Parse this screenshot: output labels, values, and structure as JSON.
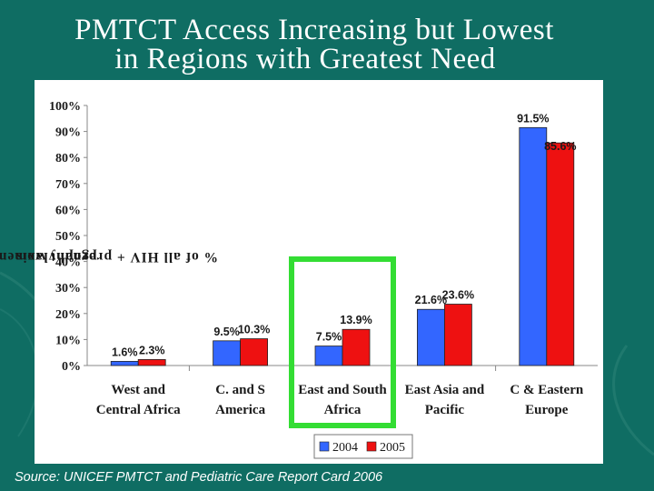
{
  "slide": {
    "title_line1": "PMTCT Access Increasing but Lowest",
    "title_line2": "in Regions with Greatest Need",
    "source": "Source: UNICEF PMTCT and Pediatric Care Report Card 2006"
  },
  "colors": {
    "background": "#0f6d63",
    "series_2004": "#3366ff",
    "series_2005": "#ee1111",
    "highlight": "#33dd33"
  },
  "chart_data": {
    "type": "bar",
    "title": "",
    "xlabel": "",
    "ylabel_line1": "% of all HIV + pregnant women receiving ARV",
    "ylabel_line2": "prophylaxis",
    "ylim": [
      0,
      100
    ],
    "yticks": [
      "0%",
      "10%",
      "20%",
      "30%",
      "40%",
      "50%",
      "60%",
      "70%",
      "80%",
      "90%",
      "100%"
    ],
    "categories": [
      [
        "West and",
        "Central Africa"
      ],
      [
        "C. and S",
        "America"
      ],
      [
        "East and South",
        "Africa"
      ],
      [
        "East Asia and",
        "Pacific"
      ],
      [
        "C & Eastern",
        "Europe"
      ]
    ],
    "highlighted_category": 2,
    "series": [
      {
        "name": "2004",
        "values": [
          1.6,
          9.5,
          7.5,
          21.6,
          91.5
        ],
        "labels": [
          "1.6%",
          "9.5%",
          "7.5%",
          "21.6%",
          "91.5%"
        ]
      },
      {
        "name": "2005",
        "values": [
          2.3,
          10.3,
          13.9,
          23.6,
          85.6
        ],
        "labels": [
          "2.3%",
          "10.3%",
          "13.9%",
          "23.6%",
          "85.6%"
        ]
      }
    ],
    "legend_position": "bottom"
  }
}
